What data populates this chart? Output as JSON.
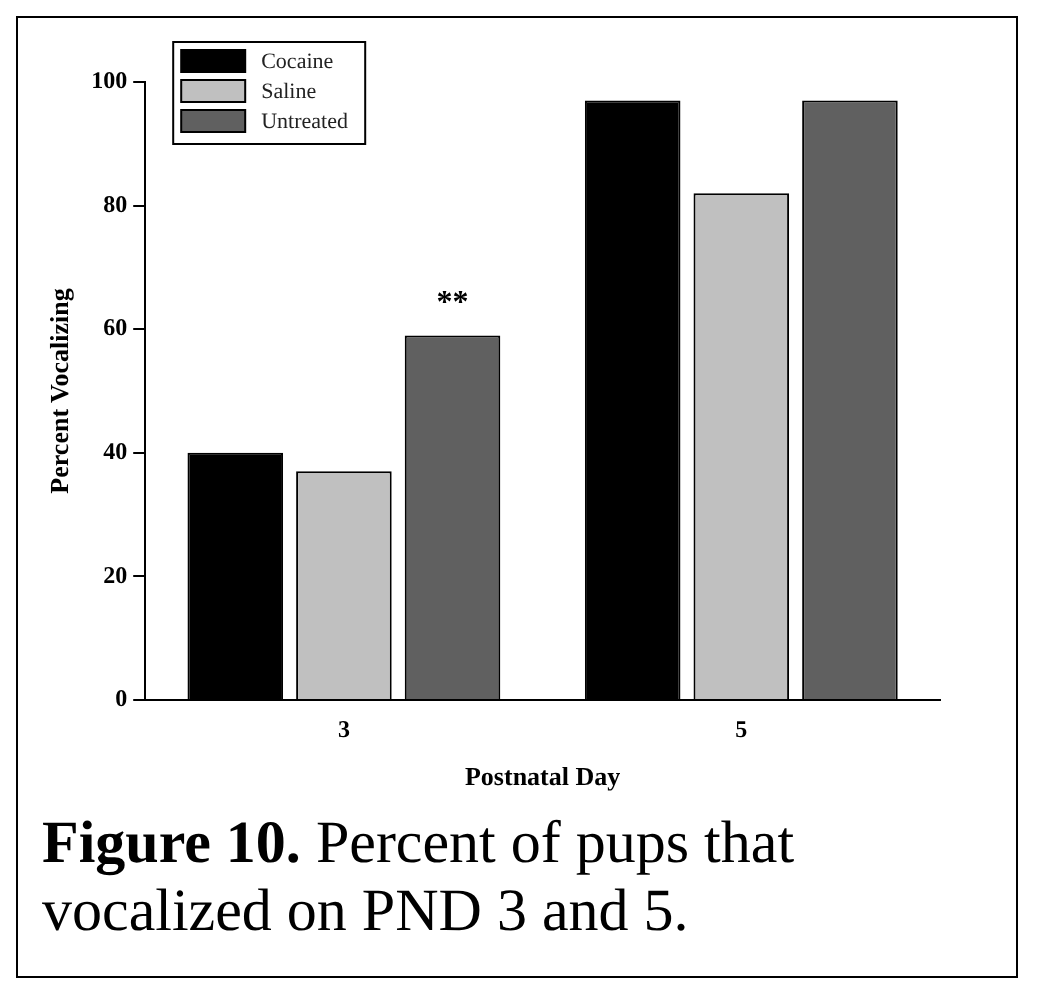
{
  "chart_data": {
    "type": "bar",
    "categories": [
      "3",
      "5"
    ],
    "series": [
      {
        "name": "Cocaine",
        "color": "#000000",
        "values": [
          40,
          97
        ]
      },
      {
        "name": "Saline",
        "color": "#c0c0c0",
        "values": [
          37,
          82
        ]
      },
      {
        "name": "Untreated",
        "color": "#606060",
        "values": [
          59,
          97
        ]
      }
    ],
    "xlabel": "Postnatal Day",
    "ylabel": "Percent Vocalizing",
    "ylim": [
      0,
      100
    ],
    "yticks": [
      0,
      20,
      40,
      60,
      80,
      100
    ],
    "grid": false,
    "legend": "top left",
    "annotations": [
      "**",
      "Figure 10.",
      "Percent of pups that vocalized on PND 3 and 5."
    ]
  }
}
